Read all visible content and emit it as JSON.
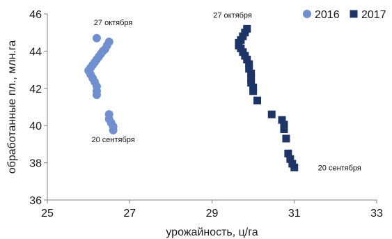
{
  "chart_data": {
    "type": "scatter",
    "xlabel": "урожайность, ц/га",
    "ylabel": "обработанные пл., млн.га",
    "xlim": [
      25,
      33
    ],
    "ylim": [
      36,
      46
    ],
    "xticks": [
      25,
      27,
      29,
      31,
      33
    ],
    "yticks": [
      36,
      38,
      40,
      42,
      44,
      46
    ],
    "grid": false,
    "legend": "top-right",
    "series": [
      {
        "name": "2016",
        "color": "#6f8fd0",
        "marker": "circle",
        "points": [
          [
            26.2,
            44.7
          ],
          [
            26.5,
            44.5
          ],
          [
            26.45,
            44.3
          ],
          [
            26.4,
            44.1
          ],
          [
            26.35,
            44.0
          ],
          [
            26.3,
            43.85
          ],
          [
            26.25,
            43.7
          ],
          [
            26.2,
            43.55
          ],
          [
            26.15,
            43.4
          ],
          [
            26.1,
            43.25
          ],
          [
            26.05,
            43.1
          ],
          [
            26.0,
            42.95
          ],
          [
            26.05,
            42.75
          ],
          [
            26.1,
            42.55
          ],
          [
            26.15,
            42.35
          ],
          [
            26.2,
            42.1
          ],
          [
            26.2,
            41.85
          ],
          [
            26.2,
            41.65
          ],
          [
            26.5,
            40.6
          ],
          [
            26.5,
            40.35
          ],
          [
            26.55,
            40.15
          ],
          [
            26.6,
            39.95
          ],
          [
            26.6,
            39.75
          ]
        ]
      },
      {
        "name": "2017",
        "color": "#1c3566",
        "marker": "square",
        "points": [
          [
            29.85,
            45.2
          ],
          [
            29.8,
            45.0
          ],
          [
            29.75,
            44.8
          ],
          [
            29.7,
            44.6
          ],
          [
            29.65,
            44.45
          ],
          [
            29.65,
            44.3
          ],
          [
            29.7,
            44.15
          ],
          [
            29.75,
            43.95
          ],
          [
            29.8,
            43.75
          ],
          [
            29.85,
            43.55
          ],
          [
            29.9,
            43.3
          ],
          [
            29.9,
            43.05
          ],
          [
            29.95,
            42.8
          ],
          [
            29.95,
            42.55
          ],
          [
            29.95,
            42.3
          ],
          [
            30.0,
            42.05
          ],
          [
            30.0,
            41.85
          ],
          [
            30.1,
            41.35
          ],
          [
            30.45,
            40.6
          ],
          [
            30.7,
            40.3
          ],
          [
            30.75,
            40.05
          ],
          [
            30.75,
            39.8
          ],
          [
            30.8,
            39.3
          ],
          [
            30.85,
            38.5
          ],
          [
            30.9,
            38.2
          ],
          [
            30.95,
            37.95
          ],
          [
            31.0,
            37.75
          ]
        ]
      }
    ],
    "annotations": [
      {
        "text": "27 октября",
        "x": 26.6,
        "y": 45.4
      },
      {
        "text": "20 сентября",
        "x": 26.6,
        "y": 39.1
      },
      {
        "text": "27 октября",
        "x": 29.5,
        "y": 45.8
      },
      {
        "text": "20 сентября",
        "x": 32.1,
        "y": 37.6
      }
    ]
  }
}
